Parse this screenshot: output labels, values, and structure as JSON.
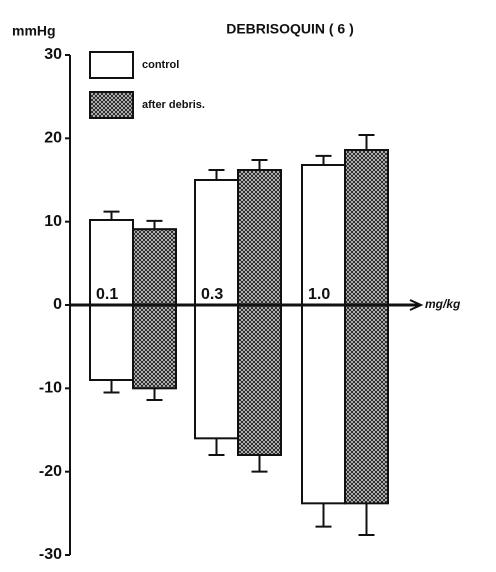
{
  "chart_data": {
    "type": "bar",
    "title": "DEBRISOQUIN ( 6 )",
    "y_label": "mmHg",
    "x_label": "mg/kg",
    "categories": [
      "0.1",
      "0.3",
      "1.0"
    ],
    "series": [
      {
        "name": "control",
        "color": "#ffffff",
        "pattern": "none",
        "rise": [
          10.2,
          15.0,
          16.8
        ],
        "rise_error": [
          1.0,
          1.2,
          1.1
        ],
        "fall": [
          -9.0,
          -16.0,
          -23.8
        ],
        "fall_error": [
          1.5,
          2.0,
          2.8
        ]
      },
      {
        "name": "after debris.",
        "color": "#777777",
        "pattern": "crosshatch",
        "rise": [
          9.1,
          16.2,
          18.6
        ],
        "rise_error": [
          1.0,
          1.2,
          1.8
        ],
        "fall": [
          -10.0,
          -18.0,
          -23.8
        ],
        "fall_error": [
          1.4,
          2.0,
          3.8
        ]
      }
    ],
    "ylim": [
      -30,
      30
    ],
    "yticks": [
      30,
      20,
      10,
      0,
      -10,
      -20,
      -30
    ]
  }
}
